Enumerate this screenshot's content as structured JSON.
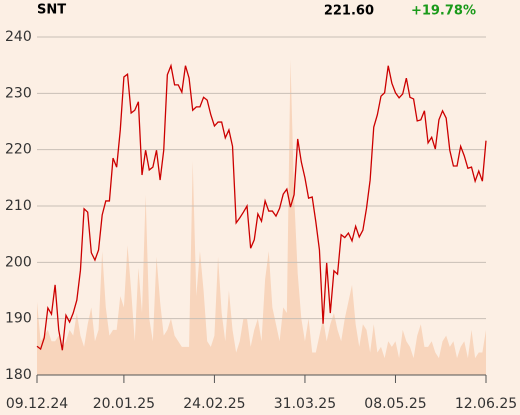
{
  "chart_data": {
    "type": "line",
    "title": "SNT",
    "price": "221.60",
    "change": "+19.78%",
    "change_color": "#1a9a1a",
    "background": "#fcefe4",
    "grid": true,
    "xlim": [
      0,
      124
    ],
    "xticks": [
      {
        "value": 0,
        "label": "09.12.24"
      },
      {
        "value": 24,
        "label": "20.01.25"
      },
      {
        "value": 49,
        "label": "24.02.25"
      },
      {
        "value": 74,
        "label": "31.03.25"
      },
      {
        "value": 99,
        "label": "08.05.25"
      },
      {
        "value": 124,
        "label": "12.06.25"
      }
    ],
    "ylim": [
      180,
      240
    ],
    "yticks": [
      180,
      190,
      200,
      210,
      220,
      230,
      240
    ],
    "series": [
      {
        "type": "area",
        "color": "#f8d5bc",
        "values": [
          193,
          186,
          187,
          188,
          186,
          186,
          187,
          185,
          186,
          188,
          187,
          191,
          187,
          185,
          189,
          192,
          186,
          188,
          202,
          192,
          187,
          188,
          188,
          194,
          192,
          203,
          195,
          186,
          199,
          191,
          212,
          190,
          186,
          201,
          193,
          187,
          188,
          190,
          187,
          186,
          185,
          185,
          185,
          218,
          194,
          202,
          195,
          186,
          185,
          187,
          201,
          191,
          186,
          195,
          188,
          184,
          186,
          190,
          190,
          185,
          188,
          190,
          186,
          197,
          202,
          192,
          189,
          186,
          192,
          191,
          236,
          212,
          198,
          190,
          186,
          190,
          184,
          184,
          187,
          190,
          186,
          189,
          191,
          188,
          186,
          190,
          193,
          196,
          189,
          185,
          189,
          188,
          184,
          189,
          184,
          185,
          183,
          186,
          185,
          186,
          183,
          188,
          186,
          185,
          183,
          187,
          189,
          185,
          185,
          186,
          184,
          183,
          186,
          187,
          185,
          186,
          183,
          185,
          186,
          183,
          188,
          183,
          184,
          184,
          188
        ]
      },
      {
        "type": "line",
        "color": "#cc0000",
        "values": [
          185.1,
          184.6,
          186.6,
          191.9,
          190.8,
          196,
          188,
          184.4,
          190.6,
          189.4,
          191,
          193.3,
          198.6,
          209.5,
          208.9,
          201.7,
          200.4,
          202.2,
          208.4,
          210.9,
          210.9,
          218.5,
          216.9,
          223.5,
          232.9,
          233.4,
          226.5,
          227,
          228.5,
          215.5,
          219.9,
          216.4,
          216.9,
          219.9,
          214.6,
          219.9,
          233.3,
          234.9,
          231.5,
          231.5,
          230.2,
          234.9,
          232.7,
          227,
          227.6,
          227.6,
          229.3,
          228.8,
          226.2,
          224.2,
          224.9,
          224.9,
          222.1,
          223.5,
          220.6,
          207,
          207.9,
          208.9,
          210,
          202.5,
          204,
          208.6,
          207.3,
          210.9,
          209.1,
          209.1,
          208.2,
          209.6,
          212.1,
          213,
          209.8,
          212,
          221.9,
          217.8,
          215,
          211.4,
          211.6,
          207.2,
          202.2,
          189.1,
          199.9,
          191,
          198.5,
          197.9,
          204.9,
          204.4,
          205.2,
          203.8,
          206.4,
          204.5,
          205.7,
          209.6,
          214.6,
          224,
          226.2,
          229.5,
          230.1,
          234.9,
          231.8,
          230.1,
          229.2,
          229.9,
          232.7,
          229.3,
          229,
          225.1,
          225.3,
          226.9,
          221.2,
          222.2,
          220.1,
          225.3,
          226.9,
          225.6,
          219.9,
          217.1,
          217.1,
          220.6,
          218.9,
          216.7,
          216.9,
          214.4,
          216.2,
          214.4,
          221.6
        ]
      }
    ]
  }
}
